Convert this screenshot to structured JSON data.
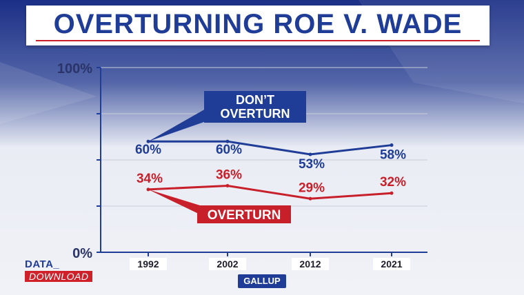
{
  "header": {
    "title": "OVERTURNING ROE V. WADE"
  },
  "brand": {
    "line1": "DATA_",
    "line2": "DOWNLOAD"
  },
  "source": "GALLUP",
  "colors": {
    "blue": "#1f3c97",
    "red": "#c8202a",
    "navy": "#1c2f7a"
  },
  "chart_data": {
    "type": "line",
    "categories": [
      "1992",
      "2002",
      "2012",
      "2021"
    ],
    "ylim": [
      0,
      100
    ],
    "y_tick_labels": [
      "100%",
      "0%"
    ],
    "grid": true,
    "series": [
      {
        "name": "DON'T OVERTURN",
        "label_lines": [
          "DON’T",
          "OVERTURN"
        ],
        "values": [
          60,
          60,
          53,
          58
        ],
        "labels": [
          "60%",
          "60%",
          "53%",
          "58%"
        ],
        "color": "#1f3c97"
      },
      {
        "name": "OVERTURN",
        "label_lines": [
          "OVERTURN"
        ],
        "values": [
          34,
          36,
          29,
          32
        ],
        "labels": [
          "34%",
          "36%",
          "29%",
          "32%"
        ],
        "color": "#c8202a"
      }
    ]
  }
}
